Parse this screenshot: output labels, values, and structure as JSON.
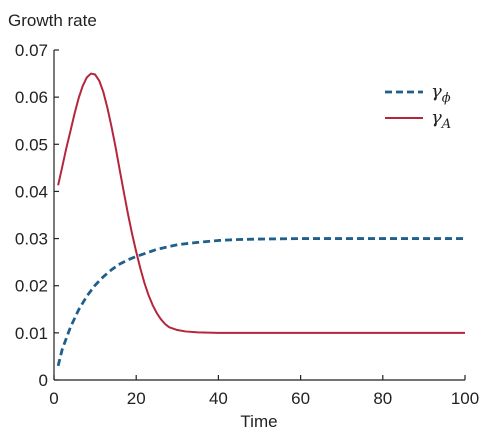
{
  "chart_data": {
    "type": "line",
    "title": "",
    "ylabel": "Growth rate",
    "xlabel": "Time",
    "xlim": [
      0,
      100
    ],
    "ylim": [
      0,
      0.07
    ],
    "x_ticks": [
      "0",
      "20",
      "40",
      "60",
      "80",
      "100"
    ],
    "y_ticks": [
      "0",
      "0.01",
      "0.02",
      "0.03",
      "0.04",
      "0.05",
      "0.06",
      "0.07"
    ],
    "grid": false,
    "legend": {
      "placement": "top-right",
      "items": [
        {
          "base": "γ",
          "sub": "ϕ",
          "series": 0
        },
        {
          "base": "γ",
          "sub": "A",
          "series": 1
        }
      ]
    },
    "series": [
      {
        "style": "dashed",
        "color": "#1f5f8b",
        "x": [
          1,
          2,
          4,
          6,
          8,
          10,
          12,
          14,
          16,
          18,
          20,
          22,
          25,
          30,
          35,
          40,
          45,
          50,
          60,
          70,
          80,
          90,
          100
        ],
        "y": [
          0.003,
          0.0065,
          0.0112,
          0.0149,
          0.0178,
          0.0201,
          0.0219,
          0.0234,
          0.0246,
          0.0255,
          0.0262,
          0.0268,
          0.0277,
          0.0287,
          0.0292,
          0.0296,
          0.0298,
          0.0299,
          0.03,
          0.03,
          0.03,
          0.03,
          0.03
        ]
      },
      {
        "style": "solid",
        "color": "#b5263b",
        "x": [
          1,
          2,
          3,
          4,
          5,
          6,
          7,
          8,
          9,
          10,
          11,
          12,
          13,
          14,
          15,
          16,
          17,
          18,
          19,
          20,
          21,
          22,
          23,
          24,
          25,
          26,
          27,
          28,
          30,
          32,
          35,
          40,
          45,
          50,
          60,
          70,
          80,
          90,
          100
        ],
        "y": [
          0.0413,
          0.0452,
          0.0492,
          0.0528,
          0.0565,
          0.0598,
          0.0624,
          0.0642,
          0.065,
          0.0648,
          0.0635,
          0.0611,
          0.0577,
          0.0537,
          0.0493,
          0.0445,
          0.0398,
          0.0352,
          0.031,
          0.0272,
          0.0237,
          0.0206,
          0.018,
          0.0159,
          0.0142,
          0.0129,
          0.0119,
          0.0112,
          0.0106,
          0.0103,
          0.0101,
          0.01,
          0.01,
          0.01,
          0.01,
          0.01,
          0.01,
          0.01,
          0.01
        ]
      }
    ]
  }
}
